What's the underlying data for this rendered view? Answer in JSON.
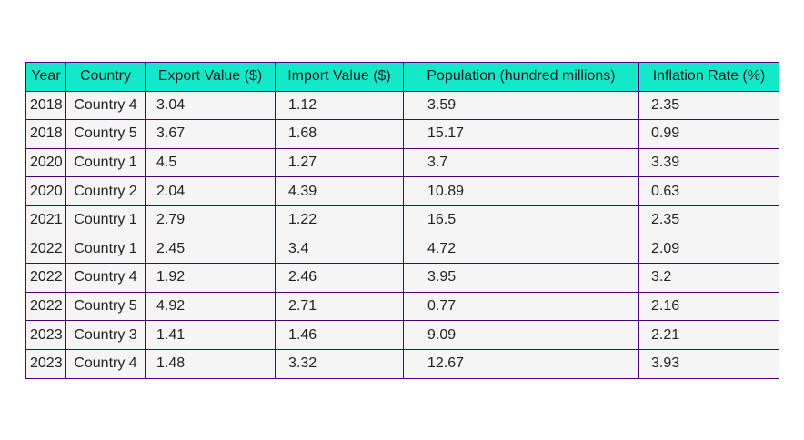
{
  "chart_data": {
    "type": "table",
    "header_color": "#13e8c8",
    "cell_color": "#f6f5f6",
    "border_color": "#4b0082",
    "columns": [
      "Year",
      "Country",
      "Export Value ($)",
      "Import Value ($)",
      "Population (hundred millions)",
      "Inflation Rate (%)"
    ],
    "rows": [
      [
        "2018",
        "Country 4",
        "3.04",
        "1.12",
        "3.59",
        "2.35"
      ],
      [
        "2018",
        "Country 5",
        "3.67",
        "1.68",
        "15.17",
        "0.99"
      ],
      [
        "2020",
        "Country 1",
        "4.5",
        "1.27",
        "3.7",
        "3.39"
      ],
      [
        "2020",
        "Country 2",
        "2.04",
        "4.39",
        "10.89",
        "0.63"
      ],
      [
        "2021",
        "Country 1",
        "2.79",
        "1.22",
        "16.5",
        "2.35"
      ],
      [
        "2022",
        "Country 1",
        "2.45",
        "3.4",
        "4.72",
        "2.09"
      ],
      [
        "2022",
        "Country 4",
        "1.92",
        "2.46",
        "3.95",
        "3.2"
      ],
      [
        "2022",
        "Country 5",
        "4.92",
        "2.71",
        "0.77",
        "2.16"
      ],
      [
        "2023",
        "Country 3",
        "1.41",
        "1.46",
        "9.09",
        "2.21"
      ],
      [
        "2023",
        "Country 4",
        "1.48",
        "3.32",
        "12.67",
        "3.93"
      ]
    ]
  }
}
